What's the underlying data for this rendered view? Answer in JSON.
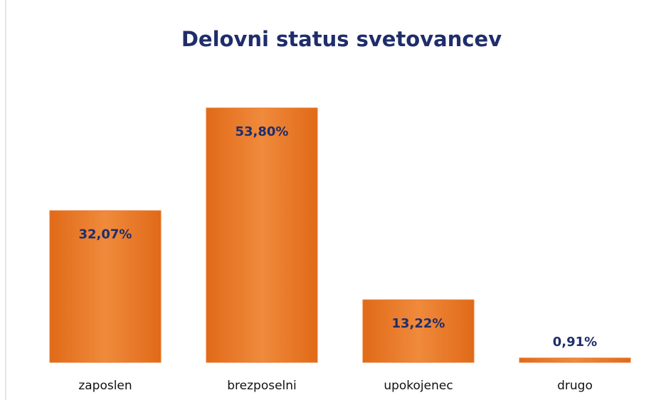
{
  "chart_data": {
    "type": "bar",
    "title": "Delovni status svetovancev",
    "categories": [
      "zaposlen",
      "brezposelni",
      "upokojenec",
      "drugo"
    ],
    "values": [
      32.07,
      53.8,
      13.22,
      0.91
    ],
    "value_labels": [
      "32,07%",
      "53,80%",
      "13,22%",
      "0,91%"
    ],
    "color": "#e8782a"
  }
}
